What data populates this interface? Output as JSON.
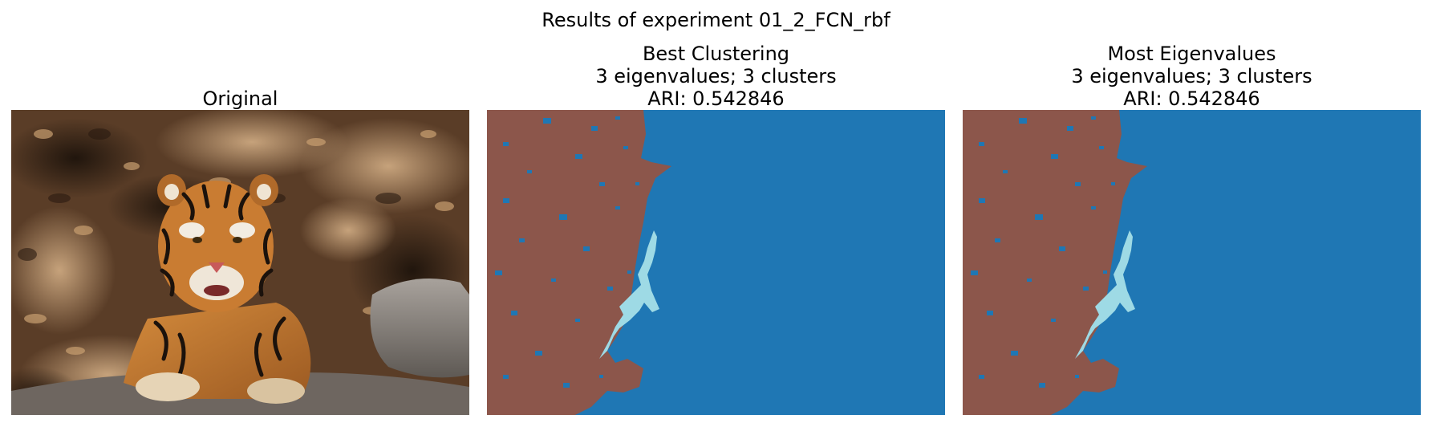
{
  "figure": {
    "title": "Results of experiment 01_2_FCN_rbf"
  },
  "panels": [
    {
      "title_lines": [
        "Original"
      ],
      "content": "photo"
    },
    {
      "title_lines": [
        "Best Clustering",
        "3 eigenvalues; 3 clusters",
        "ARI: 0.542846"
      ],
      "content": "segmentation"
    },
    {
      "title_lines": [
        "Most Eigenvalues",
        "3 eigenvalues; 3 clusters",
        "ARI: 0.542846"
      ],
      "content": "segmentation"
    }
  ],
  "colors": {
    "cluster_background": "#1f77b4",
    "cluster_foliage": "#8c564b",
    "cluster_tiger": "#9edae5",
    "photo_dark": "#2b1d13",
    "photo_mid": "#6b4a30",
    "photo_light": "#b58a5c",
    "tiger_orange": "#c8782e",
    "rock_gray": "#8a8480"
  }
}
